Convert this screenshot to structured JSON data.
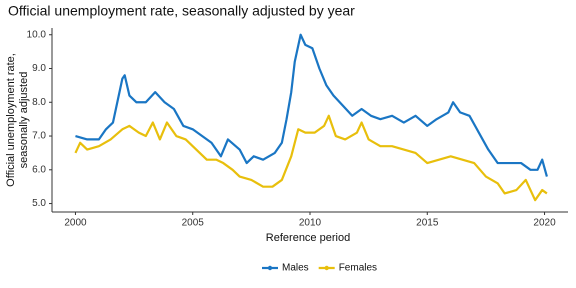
{
  "chart_data": {
    "type": "line",
    "title": "Official unemployment rate, seasonally adjusted by year",
    "x_label": "Reference period",
    "y_label": [
      "Official unemployment rate,",
      "seasonally adjusted"
    ],
    "xlim": [
      1999,
      2021
    ],
    "xticks": [
      2000,
      2005,
      2010,
      2015,
      2020
    ],
    "ylim": [
      4.75,
      10.2
    ],
    "yticks": [
      {
        "value": 5,
        "label": "5.0"
      },
      {
        "value": 6,
        "label": "6.0"
      },
      {
        "value": 7,
        "label": "7.0"
      },
      {
        "value": 8,
        "label": "8.0"
      },
      {
        "value": 9,
        "label": "9.0"
      },
      {
        "value": 10,
        "label": "10.0"
      }
    ],
    "grid": false,
    "legend": "bottom",
    "series": [
      {
        "name": "Males",
        "color": "#1a76c4",
        "x": [
          2000,
          2000.5,
          2001,
          2001.3,
          2001.6,
          2002,
          2002.1,
          2002.3,
          2002.6,
          2003,
          2003.4,
          2003.8,
          2004.2,
          2004.6,
          2005,
          2005.4,
          2005.8,
          2006.2,
          2006.5,
          2007,
          2007.3,
          2007.6,
          2008,
          2008.5,
          2008.8,
          2009,
          2009.2,
          2009.35,
          2009.6,
          2009.8,
          2010.1,
          2010.4,
          2010.7,
          2011,
          2011.4,
          2011.8,
          2012.2,
          2012.6,
          2013,
          2013.5,
          2014,
          2014.5,
          2015,
          2015.4,
          2015.9,
          2016.1,
          2016.4,
          2016.8,
          2017.2,
          2017.6,
          2018,
          2018.5,
          2019,
          2019.4,
          2019.7,
          2019.9,
          2020.1
        ],
        "values": [
          7.0,
          6.9,
          6.9,
          7.2,
          7.4,
          8.7,
          8.8,
          8.2,
          8.0,
          8.0,
          8.3,
          8.0,
          7.8,
          7.3,
          7.2,
          7.0,
          6.8,
          6.4,
          6.9,
          6.6,
          6.2,
          6.4,
          6.3,
          6.5,
          6.8,
          7.5,
          8.3,
          9.2,
          10.0,
          9.7,
          9.6,
          9.0,
          8.5,
          8.2,
          7.9,
          7.6,
          7.8,
          7.6,
          7.5,
          7.6,
          7.4,
          7.6,
          7.3,
          7.5,
          7.7,
          8.0,
          7.7,
          7.6,
          7.1,
          6.6,
          6.2,
          6.2,
          6.2,
          6.0,
          6.0,
          6.3,
          5.8
        ]
      },
      {
        "name": "Females",
        "color": "#e8bf0c",
        "x": [
          2000,
          2000.2,
          2000.5,
          2001,
          2001.5,
          2002,
          2002.3,
          2002.7,
          2003,
          2003.3,
          2003.6,
          2003.9,
          2004.3,
          2004.7,
          2005,
          2005.3,
          2005.6,
          2006,
          2006.3,
          2006.7,
          2007,
          2007.5,
          2008,
          2008.4,
          2008.8,
          2009.2,
          2009.5,
          2009.8,
          2010.2,
          2010.6,
          2010.8,
          2011.1,
          2011.5,
          2012,
          2012.2,
          2012.5,
          2013,
          2013.5,
          2014,
          2014.5,
          2015,
          2015.5,
          2016,
          2016.5,
          2017,
          2017.5,
          2018,
          2018.3,
          2018.8,
          2019.2,
          2019.6,
          2019.9,
          2020.1
        ],
        "values": [
          6.5,
          6.8,
          6.6,
          6.7,
          6.9,
          7.2,
          7.3,
          7.1,
          7.0,
          7.4,
          6.9,
          7.4,
          7.0,
          6.9,
          6.7,
          6.5,
          6.3,
          6.3,
          6.2,
          6.0,
          5.8,
          5.7,
          5.5,
          5.5,
          5.7,
          6.4,
          7.2,
          7.1,
          7.1,
          7.3,
          7.6,
          7.0,
          6.9,
          7.1,
          7.4,
          6.9,
          6.7,
          6.7,
          6.6,
          6.5,
          6.2,
          6.3,
          6.4,
          6.3,
          6.2,
          5.8,
          5.6,
          5.3,
          5.4,
          5.7,
          5.1,
          5.4,
          5.3
        ]
      }
    ]
  }
}
